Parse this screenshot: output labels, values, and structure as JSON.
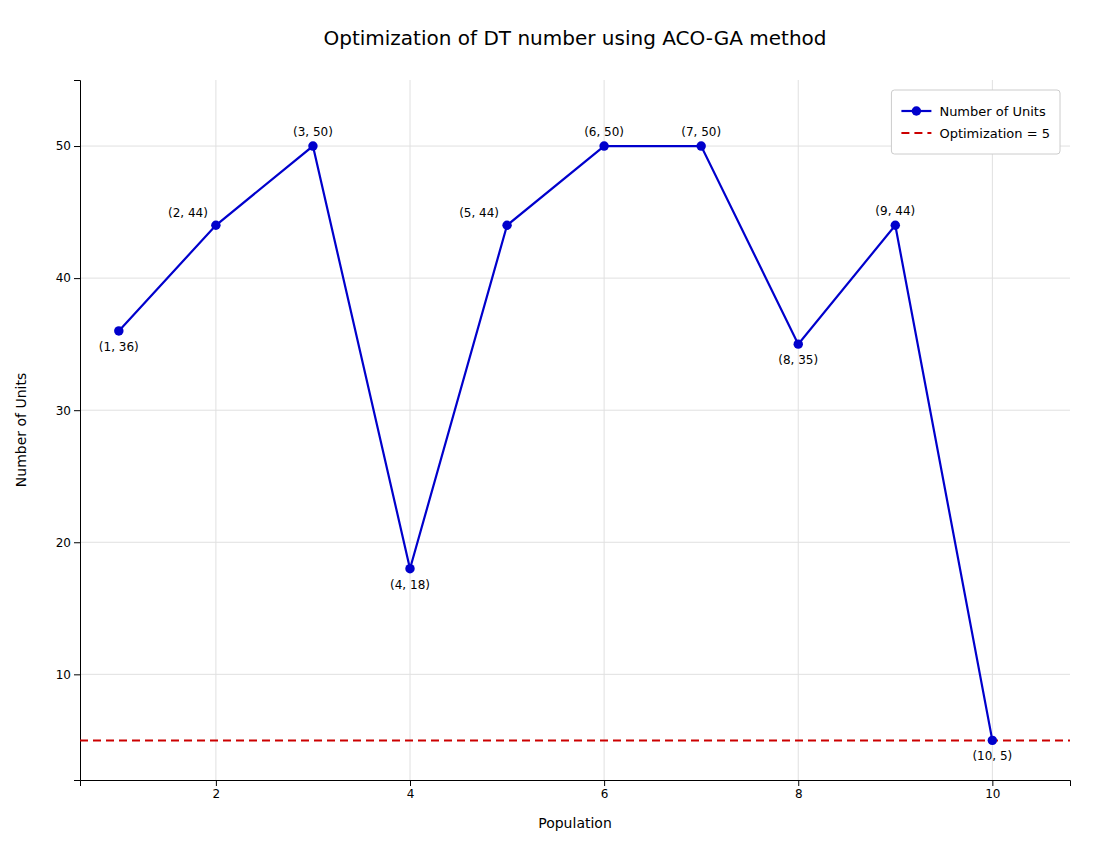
{
  "chart_data": {
    "type": "line",
    "title": "Optimization of DT number using ACO-GA method",
    "x_label": "Population",
    "y_label": "Number of Units",
    "x": [
      1,
      2,
      3,
      4,
      5,
      6,
      7,
      8,
      9,
      10
    ],
    "series": [
      {
        "name": "Number of Units",
        "color": "#0000CC",
        "marker": "circle",
        "line_style": "solid",
        "values": [
          36,
          44,
          50,
          18,
          44,
          50,
          50,
          35,
          44,
          5
        ]
      }
    ],
    "reference_lines": [
      {
        "name": "Optimization = 5",
        "value": 5,
        "color": "#CC0000",
        "line_style": "dashed"
      }
    ],
    "annotations": [
      {
        "text": "(1, 36)",
        "x": 1,
        "y": 36
      },
      {
        "text": "(2, 44)",
        "x": 2,
        "y": 44
      },
      {
        "text": "(3, 50)",
        "x": 3,
        "y": 50
      },
      {
        "text": "(4, 18)",
        "x": 4,
        "y": 18
      },
      {
        "text": "(5, 44)",
        "x": 5,
        "y": 44
      },
      {
        "text": "(6, 50)",
        "x": 6,
        "y": 50
      },
      {
        "text": "(7, 50)",
        "x": 7,
        "y": 50
      },
      {
        "text": "(8, 35)",
        "x": 8,
        "y": 35
      },
      {
        "text": "(9, 44)",
        "x": 9,
        "y": 44
      },
      {
        "text": "(10, 5)",
        "x": 10,
        "y": 5
      }
    ],
    "xlim": [
      0.6,
      10.8
    ],
    "ylim": [
      2,
      55
    ],
    "xticks": [
      2,
      4,
      6,
      8,
      10
    ],
    "yticks": [
      10,
      20,
      30,
      40,
      50
    ],
    "grid": true,
    "legend": "upper right"
  }
}
